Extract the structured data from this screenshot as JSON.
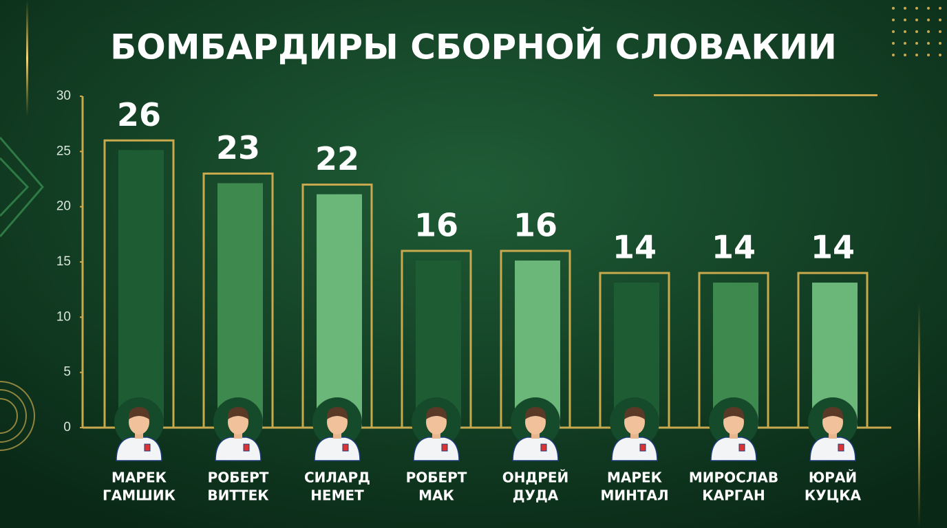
{
  "chart_data": {
    "type": "bar",
    "title": "БОМБАРДИРЫ СБОРНОЙ СЛОВАКИИ",
    "categories": [
      [
        "МАРЕК",
        "ГАМШИК"
      ],
      [
        "РОБЕРТ",
        "ВИТТЕК"
      ],
      [
        "СИЛАРД",
        "НЕМЕТ"
      ],
      [
        "РОБЕРТ",
        "МАК"
      ],
      [
        "ОНДРЕЙ",
        "ДУДА"
      ],
      [
        "МАРЕК",
        "МИНТАЛ"
      ],
      [
        "МИРОСЛАВ",
        "КАРГАН"
      ],
      [
        "ЮРАЙ",
        "КУЦКА"
      ]
    ],
    "values": [
      26,
      23,
      22,
      16,
      16,
      14,
      14,
      14
    ],
    "colors": [
      "#1e5c33",
      "#3e8a4e",
      "#6ab779",
      "#1e5c33",
      "#6ab779",
      "#1e5c33",
      "#3e8a4e",
      "#6ab779"
    ],
    "outline_color": "#c9a94e",
    "ylim": [
      0,
      30
    ],
    "yticks": [
      0,
      5,
      10,
      15,
      20,
      25,
      30
    ]
  }
}
